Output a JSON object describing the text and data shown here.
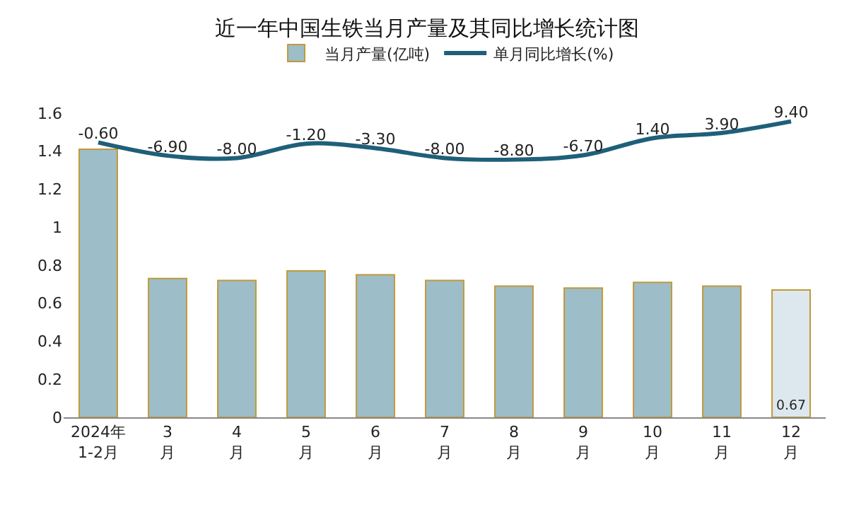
{
  "chart_data": {
    "type": "bar",
    "title": "近一年中国生铁当月产量及其同比增长统计图",
    "categories": [
      "2024年\n1-2月",
      "3\n月",
      "4\n月",
      "5\n月",
      "6\n月",
      "7\n月",
      "8\n月",
      "9\n月",
      "10\n月",
      "11\n月",
      "12\n月"
    ],
    "series": [
      {
        "name": "当月产量(亿吨)",
        "colors": [
          "#9dbdc9",
          "#9dbdc9",
          "#9dbdc9",
          "#9dbdc9",
          "#9dbdc9",
          "#9dbdc9",
          "#9dbdc9",
          "#9dbdc9",
          "#9dbdc9",
          "#9dbdc9",
          "#dce8ee"
        ],
        "values": [
          1.41,
          0.73,
          0.72,
          0.77,
          0.75,
          0.72,
          0.69,
          0.68,
          0.71,
          0.69,
          0.67
        ],
        "value_labels": [
          null,
          null,
          null,
          null,
          null,
          null,
          null,
          null,
          null,
          null,
          "0.67"
        ]
      },
      {
        "name": "单月同比增长(%)",
        "type": "line",
        "axis": "y2",
        "color": "#1f5f7a",
        "line_style": "solid",
        "values": [
          -0.6,
          -6.9,
          -8.0,
          -1.2,
          -3.3,
          -8.0,
          -8.8,
          -6.7,
          1.4,
          3.9,
          9.4
        ],
        "value_labels": [
          "-0.60",
          "-6.90",
          "-8.00",
          "-1.20",
          "-3.30",
          "-8.00",
          "-8.80",
          "-6.70",
          "1.40",
          "3.90",
          "9.40"
        ]
      }
    ],
    "ylim": [
      0,
      1.6
    ],
    "yticks": [
      0,
      0.2,
      0.4,
      0.6,
      0.8,
      1,
      1.2,
      1.4,
      1.6
    ],
    "legend": "top",
    "grid": false
  }
}
